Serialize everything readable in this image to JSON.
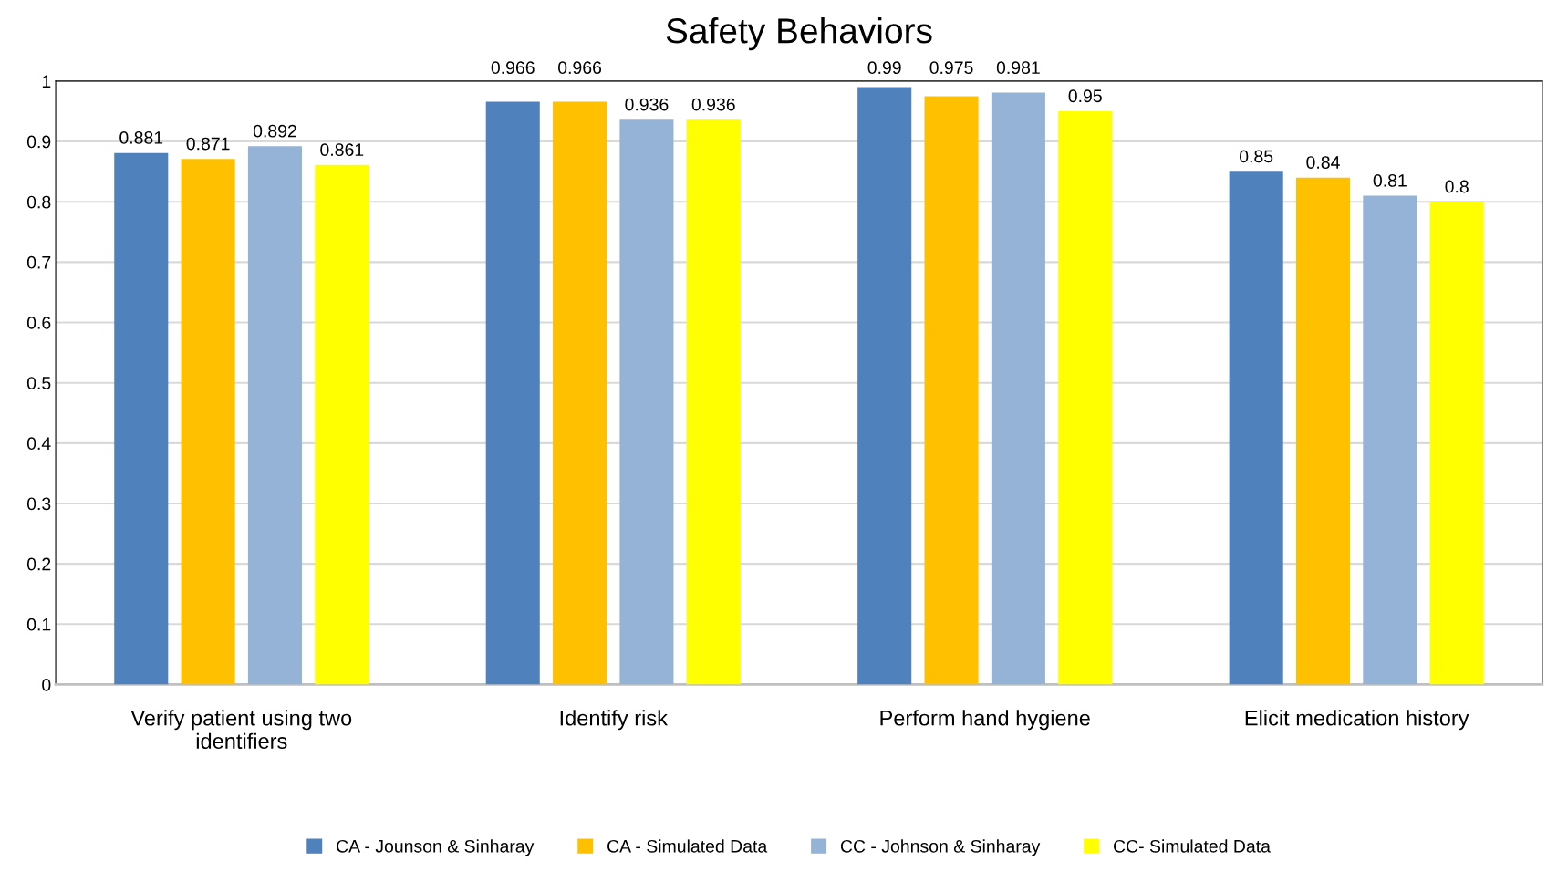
{
  "chart_data": {
    "type": "bar",
    "title": "Safety Behaviors",
    "categories": [
      "Verify patient using two\nidentifiers",
      "Identify risk",
      "Perform hand hygiene",
      "Elicit medication history"
    ],
    "series": [
      {
        "name": "CA - Jounson & Sinharay",
        "color": "#4f81bd",
        "values": [
          0.881,
          0.966,
          0.99,
          0.85
        ]
      },
      {
        "name": "CA - Simulated Data",
        "color": "#ffc000",
        "values": [
          0.871,
          0.966,
          0.975,
          0.84
        ]
      },
      {
        "name": "CC - Johnson & Sinharay",
        "color": "#95b3d7",
        "values": [
          0.892,
          0.936,
          0.981,
          0.81
        ]
      },
      {
        "name": "CC- Simulated Data",
        "color": "#ffff00",
        "values": [
          0.861,
          0.936,
          0.95,
          0.8
        ]
      }
    ],
    "ylim": [
      0,
      1
    ],
    "yticks": [
      0,
      0.1,
      0.2,
      0.3,
      0.4,
      0.5,
      0.6,
      0.7,
      0.8,
      0.9,
      1
    ],
    "grid": "y",
    "legend": "bottom",
    "data_labels": true
  }
}
